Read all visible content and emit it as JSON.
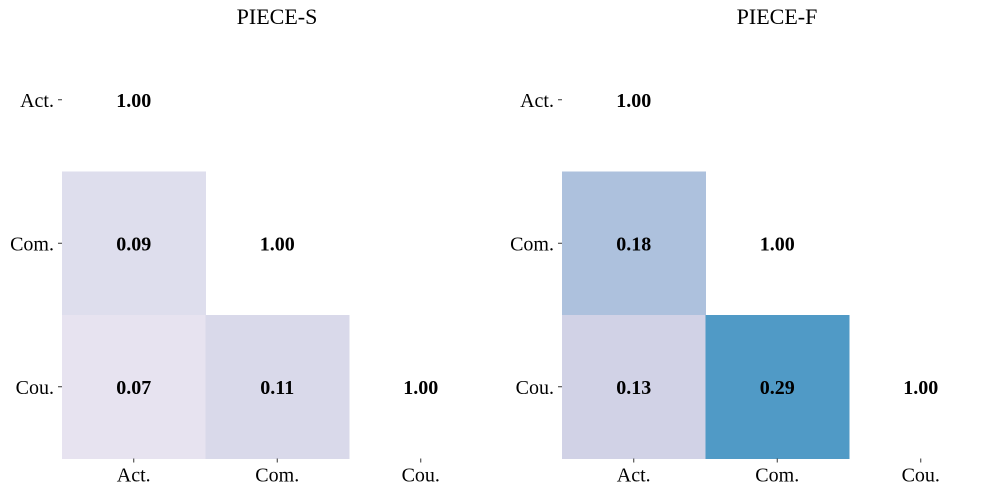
{
  "chart_data": [
    {
      "type": "heatmap",
      "title": "PIECE-S",
      "xlabel": "",
      "ylabel": "",
      "rows": [
        "Act.",
        "Com.",
        "Cou."
      ],
      "columns": [
        "Act.",
        "Com.",
        "Cou."
      ],
      "cells": [
        {
          "row": 0,
          "col": 0,
          "value": 1.0,
          "label": "1.00",
          "color": null
        },
        {
          "row": 1,
          "col": 0,
          "value": 0.09,
          "label": "0.09",
          "color": "#dedeed"
        },
        {
          "row": 1,
          "col": 1,
          "value": 1.0,
          "label": "1.00",
          "color": null
        },
        {
          "row": 2,
          "col": 0,
          "value": 0.07,
          "label": "0.07",
          "color": "#e7e3f0"
        },
        {
          "row": 2,
          "col": 1,
          "value": 0.11,
          "label": "0.11",
          "color": "#d9d9ea"
        },
        {
          "row": 2,
          "col": 2,
          "value": 1.0,
          "label": "1.00",
          "color": null
        }
      ],
      "mask": "upper-triangle"
    },
    {
      "type": "heatmap",
      "title": "PIECE-F",
      "xlabel": "",
      "ylabel": "",
      "rows": [
        "Act.",
        "Com.",
        "Cou."
      ],
      "columns": [
        "Act.",
        "Com.",
        "Cou."
      ],
      "cells": [
        {
          "row": 0,
          "col": 0,
          "value": 1.0,
          "label": "1.00",
          "color": null
        },
        {
          "row": 1,
          "col": 0,
          "value": 0.18,
          "label": "0.18",
          "color": "#adc1dd"
        },
        {
          "row": 1,
          "col": 1,
          "value": 1.0,
          "label": "1.00",
          "color": null
        },
        {
          "row": 2,
          "col": 0,
          "value": 0.13,
          "label": "0.13",
          "color": "#d1d2e6"
        },
        {
          "row": 2,
          "col": 1,
          "value": 0.29,
          "label": "0.29",
          "color": "#509ac6"
        },
        {
          "row": 2,
          "col": 2,
          "value": 1.0,
          "label": "1.00",
          "color": null
        }
      ],
      "mask": "upper-triangle"
    }
  ]
}
